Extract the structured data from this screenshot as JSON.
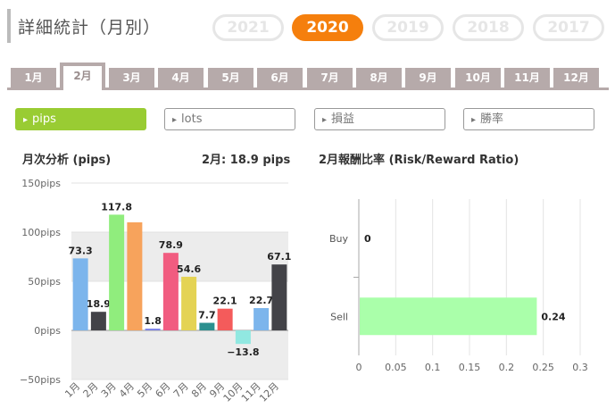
{
  "header": {
    "title": "詳細統計（月別）",
    "years": [
      {
        "label": "2021",
        "active": false
      },
      {
        "label": "2020",
        "active": true
      },
      {
        "label": "2019",
        "active": false
      },
      {
        "label": "2018",
        "active": false
      },
      {
        "label": "2017",
        "active": false
      }
    ]
  },
  "months": {
    "tabs": [
      "1月",
      "2月",
      "3月",
      "4月",
      "5月",
      "6月",
      "7月",
      "8月",
      "9月",
      "10月",
      "11月",
      "12月"
    ],
    "active_index": 1
  },
  "filters": [
    {
      "label": "pips",
      "active": true
    },
    {
      "label": "lots",
      "active": false
    },
    {
      "label": "損益",
      "active": false
    },
    {
      "label": "勝率",
      "active": false
    }
  ],
  "left_panel": {
    "title": "月次分析 (pips)",
    "summary": "2月:  18.9 pips"
  },
  "right_panel": {
    "title": "2月報酬比率 (Risk/Reward Ratio)"
  },
  "chart_data": [
    {
      "type": "bar",
      "title": "月次分析 (pips)",
      "categories": [
        "1月",
        "2月",
        "3月",
        "4月",
        "5月",
        "6月",
        "7月",
        "8月",
        "9月",
        "10月",
        "11月",
        "12月"
      ],
      "values": [
        73.3,
        18.9,
        117.8,
        110.0,
        1.8,
        78.9,
        54.6,
        7.7,
        22.1,
        -13.8,
        22.7,
        67.1
      ],
      "labels": [
        "73.3",
        "18.9",
        "117.8",
        "",
        "1.8",
        "78.9",
        "54.6",
        "7.7",
        "22.1",
        "−13.8",
        "22.7",
        "67.1"
      ],
      "colors": [
        "#7cb5ec",
        "#434348",
        "#90ed7d",
        "#f7a35c",
        "#8085e9",
        "#f15c80",
        "#e4d354",
        "#2b908f",
        "#f45b5b",
        "#91e8e1",
        "#7cb5ec",
        "#434348"
      ],
      "yticks": [
        "150pips",
        "100pips",
        "50pips",
        "0pips",
        "−50pips"
      ],
      "ytick_values": [
        150,
        100,
        50,
        0,
        -50
      ],
      "ylim": [
        -50,
        150
      ]
    },
    {
      "type": "bar",
      "orientation": "horizontal",
      "title": "2月報酬比率 (Risk/Reward Ratio)",
      "categories": [
        "Buy",
        "Sell"
      ],
      "values": [
        0,
        0.24
      ],
      "labels": [
        "0",
        "0.24"
      ],
      "color": "#aaffaa",
      "xticks": [
        "0",
        "0.05",
        "0.1",
        "0.15",
        "0.2",
        "0.25",
        "0.3"
      ],
      "xtick_values": [
        0,
        0.05,
        0.1,
        0.15,
        0.2,
        0.25,
        0.3
      ],
      "xlim": [
        0,
        0.3
      ]
    }
  ]
}
